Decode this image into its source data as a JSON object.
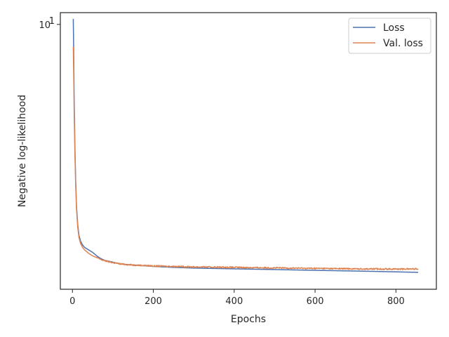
{
  "chart_data": {
    "type": "line",
    "title": "",
    "xlabel": "Epochs",
    "ylabel": "Negative log-likelihood",
    "xlim": [
      -30,
      900
    ],
    "ylim": [
      0.96,
      11.1
    ],
    "yscale": "log",
    "x_ticks": [
      0,
      200,
      400,
      600,
      800
    ],
    "x_tick_labels": [
      "0",
      "200",
      "400",
      "600",
      "800"
    ],
    "y_ticks": [
      10
    ],
    "y_tick_labels": [
      "10"
    ],
    "y_tick_exponents": [
      "1"
    ],
    "y_tick_base": "10",
    "grid": false,
    "legend_position": "top-right",
    "series": [
      {
        "name": "Loss",
        "color": "#4c72b0",
        "x": [
          2,
          3,
          4,
          6,
          8,
          10,
          13,
          16,
          20,
          25,
          30,
          40,
          50,
          60,
          70,
          80,
          100,
          120,
          150,
          200,
          250,
          300,
          400,
          500,
          600,
          700,
          800,
          855
        ],
        "y": [
          10.5,
          8.0,
          5.5,
          3.4,
          2.5,
          2.0,
          1.7,
          1.55,
          1.47,
          1.42,
          1.39,
          1.36,
          1.33,
          1.29,
          1.26,
          1.24,
          1.22,
          1.2,
          1.19,
          1.175,
          1.165,
          1.158,
          1.15,
          1.143,
          1.135,
          1.128,
          1.12,
          1.115
        ]
      },
      {
        "name": "Val. loss",
        "color": "#dd8452",
        "x": [
          2,
          3,
          4,
          6,
          8,
          10,
          13,
          16,
          20,
          25,
          30,
          40,
          50,
          60,
          70,
          80,
          100,
          120,
          150,
          200,
          250,
          300,
          400,
          500,
          600,
          700,
          800,
          855
        ],
        "y": [
          8.2,
          6.5,
          4.8,
          3.2,
          2.4,
          1.95,
          1.66,
          1.52,
          1.44,
          1.39,
          1.36,
          1.32,
          1.29,
          1.27,
          1.25,
          1.235,
          1.215,
          1.2,
          1.19,
          1.18,
          1.175,
          1.17,
          1.165,
          1.16,
          1.155,
          1.15,
          1.148,
          1.15
        ]
      }
    ]
  }
}
